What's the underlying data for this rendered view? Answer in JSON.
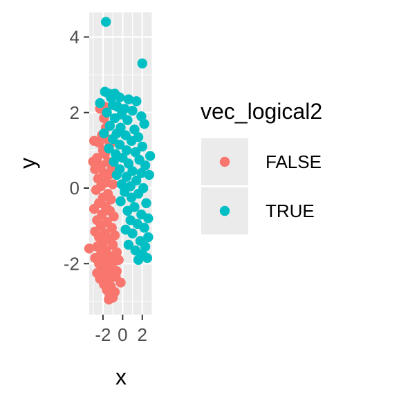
{
  "chart_data": {
    "type": "scatter",
    "xlabel": "x",
    "ylabel": "y",
    "xlim": [
      -3.4,
      3.0
    ],
    "ylim": [
      -3.35,
      4.65
    ],
    "x_ticks": [
      {
        "value": -2,
        "label": "-2"
      },
      {
        "value": 0,
        "label": "0"
      },
      {
        "value": 2,
        "label": "2"
      }
    ],
    "y_ticks": [
      {
        "value": -2,
        "label": "-2"
      },
      {
        "value": 0,
        "label": "0"
      },
      {
        "value": 2,
        "label": "2"
      },
      {
        "value": 4,
        "label": "4"
      }
    ],
    "grid": true,
    "legend": {
      "title": "vec_logical2",
      "position": "right"
    },
    "series": [
      {
        "name": "FALSE",
        "color": "#F8766D",
        "points": [
          [
            -1.8,
            2.15
          ],
          [
            -2.3,
            2.1
          ],
          [
            -1.9,
            1.85
          ],
          [
            -1.7,
            1.6
          ],
          [
            -2.1,
            1.4
          ],
          [
            -1.6,
            1.3
          ],
          [
            -2.4,
            1.2
          ],
          [
            -2.9,
            1.25
          ],
          [
            -1.3,
            1.15
          ],
          [
            -2.0,
            1.0
          ],
          [
            -1.8,
            0.9
          ],
          [
            -2.6,
            0.8
          ],
          [
            -3.0,
            0.7
          ],
          [
            -1.5,
            0.7
          ],
          [
            -2.2,
            0.6
          ],
          [
            -1.1,
            0.55
          ],
          [
            -2.8,
            0.5
          ],
          [
            -1.9,
            0.4
          ],
          [
            -1.4,
            0.35
          ],
          [
            -2.5,
            0.25
          ],
          [
            -1.7,
            0.15
          ],
          [
            -2.2,
            0.05
          ],
          [
            -1.0,
            0.1
          ],
          [
            -2.7,
            -0.05
          ],
          [
            -1.5,
            -0.15
          ],
          [
            -2.0,
            -0.25
          ],
          [
            -1.2,
            -0.3
          ],
          [
            -2.4,
            -0.4
          ],
          [
            -1.7,
            -0.5
          ],
          [
            -2.9,
            -0.55
          ],
          [
            -1.3,
            -0.6
          ],
          [
            -2.1,
            -0.7
          ],
          [
            -0.9,
            -0.75
          ],
          [
            -2.6,
            -0.85
          ],
          [
            -1.6,
            -0.9
          ],
          [
            -2.2,
            -1.0
          ],
          [
            -1.1,
            -1.05
          ],
          [
            -2.8,
            -1.15
          ],
          [
            -1.8,
            -1.2
          ],
          [
            -0.8,
            -1.25
          ],
          [
            -2.4,
            -1.3
          ],
          [
            -1.4,
            -1.35
          ],
          [
            -2.0,
            -1.45
          ],
          [
            -1.0,
            -1.5
          ],
          [
            -2.6,
            -1.55
          ],
          [
            -3.4,
            -1.6
          ],
          [
            -1.7,
            -1.65
          ],
          [
            -0.6,
            -1.7
          ],
          [
            -2.2,
            -1.75
          ],
          [
            -1.3,
            -1.8
          ],
          [
            -2.8,
            -1.85
          ],
          [
            -1.9,
            -1.9
          ],
          [
            -0.9,
            -1.95
          ],
          [
            -2.4,
            -2.0
          ],
          [
            -1.5,
            -2.05
          ],
          [
            -2.0,
            -2.15
          ],
          [
            -1.1,
            -2.2
          ],
          [
            -2.6,
            -2.25
          ],
          [
            -1.7,
            -2.3
          ],
          [
            -0.7,
            -2.35
          ],
          [
            -2.3,
            -2.4
          ],
          [
            -1.4,
            -2.45
          ],
          [
            -1.9,
            -2.55
          ],
          [
            -0.2,
            -2.5
          ],
          [
            -1.2,
            -2.6
          ],
          [
            -1.6,
            -2.7
          ],
          [
            -0.8,
            -2.75
          ],
          [
            -1.3,
            -2.85
          ],
          [
            -1.0,
            -2.9
          ],
          [
            -1.4,
            -2.95
          ],
          [
            -0.6,
            -2.2
          ],
          [
            -0.4,
            -1.9
          ]
        ]
      },
      {
        "name": "TRUE",
        "color": "#00BFC4",
        "points": [
          [
            -1.7,
            4.4
          ],
          [
            2.0,
            3.3
          ],
          [
            -1.8,
            2.55
          ],
          [
            -1.4,
            2.5
          ],
          [
            -0.8,
            2.5
          ],
          [
            -1.2,
            2.4
          ],
          [
            -0.3,
            2.4
          ],
          [
            0.6,
            2.35
          ],
          [
            1.4,
            2.3
          ],
          [
            -2.3,
            2.25
          ],
          [
            -1.0,
            2.2
          ],
          [
            -0.5,
            2.15
          ],
          [
            0.2,
            2.1
          ],
          [
            1.0,
            2.05
          ],
          [
            -1.6,
            2.0
          ],
          [
            -0.1,
            1.95
          ],
          [
            1.9,
            1.9
          ],
          [
            -0.8,
            1.85
          ],
          [
            0.5,
            1.8
          ],
          [
            2.2,
            1.7
          ],
          [
            -1.3,
            1.65
          ],
          [
            -0.2,
            1.6
          ],
          [
            1.2,
            1.55
          ],
          [
            -1.9,
            1.45
          ],
          [
            -0.6,
            1.45
          ],
          [
            0.3,
            1.4
          ],
          [
            1.6,
            1.35
          ],
          [
            -1.0,
            1.3
          ],
          [
            0.9,
            1.25
          ],
          [
            -0.3,
            1.15
          ],
          [
            2.0,
            1.1
          ],
          [
            -1.4,
            1.05
          ],
          [
            0.4,
            1.0
          ],
          [
            1.3,
            0.95
          ],
          [
            -0.7,
            0.9
          ],
          [
            2.8,
            0.85
          ],
          [
            0.0,
            0.8
          ],
          [
            1.7,
            0.75
          ],
          [
            -0.9,
            0.7
          ],
          [
            0.6,
            0.65
          ],
          [
            2.3,
            0.6
          ],
          [
            -0.3,
            0.5
          ],
          [
            1.0,
            0.45
          ],
          [
            1.9,
            0.4
          ],
          [
            -0.6,
            0.35
          ],
          [
            2.7,
            0.35
          ],
          [
            0.4,
            0.3
          ],
          [
            1.4,
            0.2
          ],
          [
            -0.1,
            0.1
          ],
          [
            0.8,
            0.05
          ],
          [
            2.1,
            0.0
          ],
          [
            0.2,
            -0.1
          ],
          [
            1.6,
            -0.15
          ],
          [
            0.9,
            -0.25
          ],
          [
            -0.2,
            -0.35
          ],
          [
            2.4,
            -0.4
          ],
          [
            1.2,
            -0.5
          ],
          [
            0.5,
            -0.6
          ],
          [
            1.9,
            -0.7
          ],
          [
            2.6,
            -0.8
          ],
          [
            0.8,
            -0.85
          ],
          [
            1.5,
            -0.95
          ],
          [
            2.2,
            -1.05
          ],
          [
            0.3,
            -1.1
          ],
          [
            1.0,
            -1.2
          ],
          [
            2.6,
            -1.3
          ],
          [
            1.8,
            -1.4
          ],
          [
            0.6,
            -1.5
          ],
          [
            2.3,
            -1.55
          ],
          [
            1.3,
            -1.65
          ],
          [
            2.0,
            -1.75
          ],
          [
            2.5,
            -1.85
          ],
          [
            1.6,
            -1.9
          ]
        ]
      }
    ]
  }
}
